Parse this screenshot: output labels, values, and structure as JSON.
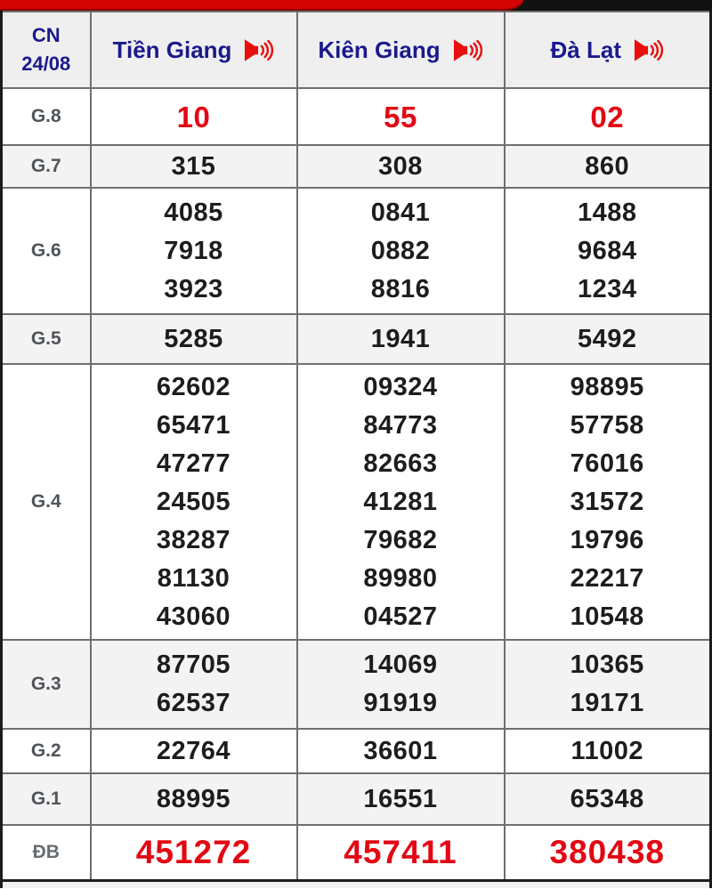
{
  "header": {
    "date_label": "CN",
    "date_value": "24/08",
    "columns": [
      {
        "label": "Tiền Giang"
      },
      {
        "label": "Kiên Giang"
      },
      {
        "label": "Đà Lạt"
      }
    ]
  },
  "icons": {
    "speaker": "volume-up-red"
  },
  "rows": [
    {
      "label": "G.8",
      "red": true,
      "cells": [
        [
          "10"
        ],
        [
          "55"
        ],
        [
          "02"
        ]
      ]
    },
    {
      "label": "G.7",
      "red": false,
      "cells": [
        [
          "315"
        ],
        [
          "308"
        ],
        [
          "860"
        ]
      ]
    },
    {
      "label": "G.6",
      "red": false,
      "cells": [
        [
          "4085",
          "7918",
          "3923"
        ],
        [
          "0841",
          "0882",
          "8816"
        ],
        [
          "1488",
          "9684",
          "1234"
        ]
      ]
    },
    {
      "label": "G.5",
      "red": false,
      "cells": [
        [
          "5285"
        ],
        [
          "1941"
        ],
        [
          "5492"
        ]
      ]
    },
    {
      "label": "G.4",
      "red": false,
      "cells": [
        [
          "62602",
          "65471",
          "47277",
          "24505",
          "38287",
          "81130",
          "43060"
        ],
        [
          "09324",
          "84773",
          "82663",
          "41281",
          "79682",
          "89980",
          "04527"
        ],
        [
          "98895",
          "57758",
          "76016",
          "31572",
          "19796",
          "22217",
          "10548"
        ]
      ]
    },
    {
      "label": "G.3",
      "red": false,
      "cells": [
        [
          "87705",
          "62537"
        ],
        [
          "14069",
          "91919"
        ],
        [
          "10365",
          "19171"
        ]
      ]
    },
    {
      "label": "G.2",
      "red": false,
      "cells": [
        [
          "22764"
        ],
        [
          "36601"
        ],
        [
          "11002"
        ]
      ]
    },
    {
      "label": "G.1",
      "red": false,
      "cells": [
        [
          "88995"
        ],
        [
          "16551"
        ],
        [
          "65348"
        ]
      ]
    },
    {
      "label": "ĐB",
      "red": true,
      "cells": [
        [
          "451272"
        ],
        [
          "457411"
        ],
        [
          "380438"
        ]
      ]
    }
  ],
  "colors": {
    "accent_red": "#d40404",
    "number_red": "#e30613",
    "header_navy": "#1a1a8c",
    "label_gray": "#4f545a",
    "number_black": "#1d1d1d"
  }
}
